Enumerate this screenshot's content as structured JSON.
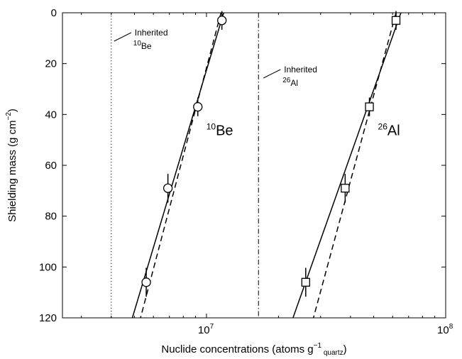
{
  "chart_data": {
    "type": "line",
    "title": "",
    "xlabel": {
      "prefix": "Nuclide concentrations (atoms g",
      "superscript": "−1",
      "subscript": " quartz",
      "suffix": ")"
    },
    "ylabel": {
      "prefix": "Shielding mass (g cm",
      "superscript": "−2",
      "suffix": ")"
    },
    "x_scale": "log",
    "xlim": [
      2500000,
      100000000
    ],
    "ylim": [
      0,
      120
    ],
    "y_inverted": true,
    "x_ticks": [
      {
        "value": 10000000,
        "base": "10",
        "exp": "7"
      },
      {
        "value": 100000000,
        "base": "10",
        "exp": "8"
      }
    ],
    "y_ticks": [
      {
        "value": 0,
        "label": "0"
      },
      {
        "value": 20,
        "label": "20"
      },
      {
        "value": 40,
        "label": "40"
      },
      {
        "value": 60,
        "label": "60"
      },
      {
        "value": 80,
        "label": "80"
      },
      {
        "value": 100,
        "label": "100"
      },
      {
        "value": 120,
        "label": "120"
      }
    ],
    "grid": false,
    "inherited_lines": [
      {
        "nuclide": "Be",
        "mass": "10",
        "x": 4000000,
        "style": "dotted",
        "label": "Inherited"
      },
      {
        "nuclide": "Al",
        "mass": "26",
        "x": 16500000,
        "style": "dashdot",
        "label": "Inherited"
      }
    ],
    "series": [
      {
        "nuclide": "Be",
        "mass": "10",
        "marker": "circle",
        "points": [
          {
            "x": 11600000,
            "y": 3,
            "yerr": 2
          },
          {
            "x": 9200000,
            "y": 37,
            "yerr": 2
          },
          {
            "x": 6900000,
            "y": 69,
            "yerr": 4
          },
          {
            "x": 5600000,
            "y": 106,
            "yerr": 4
          }
        ],
        "fit_solid": [
          {
            "x": 11800000,
            "y": 0
          },
          {
            "x": 4900000,
            "y": 120
          }
        ],
        "fit_dashed": [
          {
            "x": 11500000,
            "y": 0
          },
          {
            "x": 5300000,
            "y": 120
          }
        ]
      },
      {
        "nuclide": "Al",
        "mass": "26",
        "marker": "square",
        "points": [
          {
            "x": 62000000,
            "y": 3,
            "yerr": 2
          },
          {
            "x": 48000000,
            "y": 37,
            "yerr": 2
          },
          {
            "x": 38000000,
            "y": 69,
            "yerr": 4
          },
          {
            "x": 26000000,
            "y": 106,
            "yerr": 4
          }
        ],
        "fit_solid": [
          {
            "x": 65000000,
            "y": 0
          },
          {
            "x": 23000000,
            "y": 120
          }
        ],
        "fit_dashed": [
          {
            "x": 62000000,
            "y": 0
          },
          {
            "x": 28000000,
            "y": 120
          }
        ]
      }
    ]
  }
}
